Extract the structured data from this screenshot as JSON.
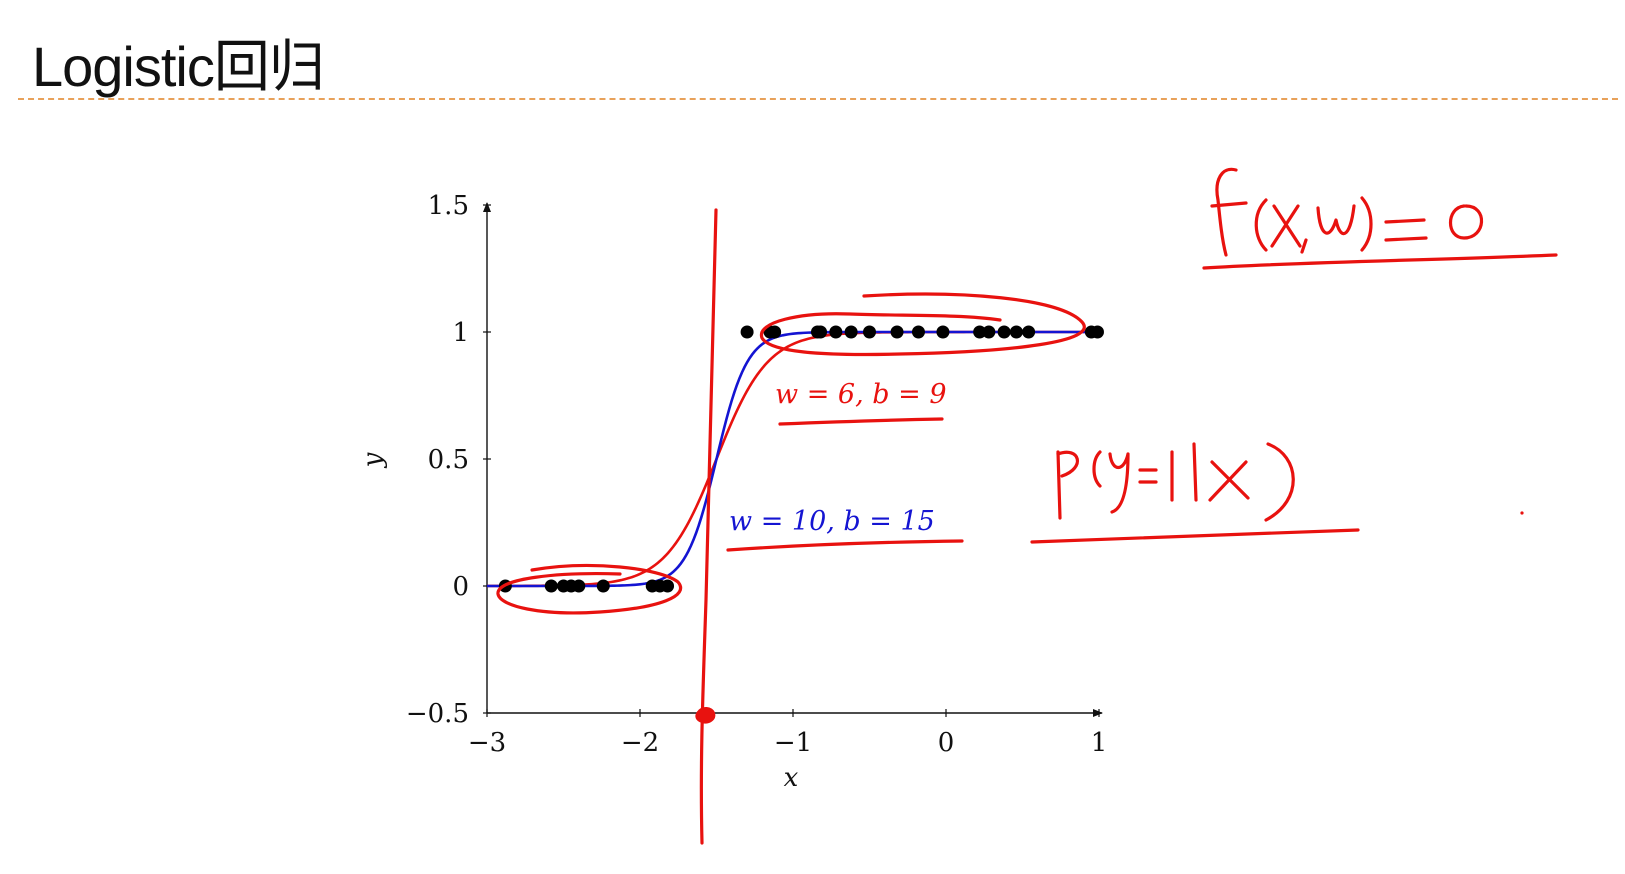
{
  "slide": {
    "title": "Logistic回归"
  },
  "chart_data": {
    "type": "line",
    "xlabel": "x",
    "ylabel": "y",
    "xlim": [
      -3,
      1
    ],
    "ylim": [
      -0.5,
      1.5
    ],
    "xticks": [
      -3,
      -2,
      -1,
      0,
      1
    ],
    "xtick_labels": [
      "−3",
      "−2",
      "−1",
      "0",
      "1"
    ],
    "yticks": [
      -0.5,
      0,
      0.5,
      1,
      1.5
    ],
    "ytick_labels": [
      "−0.5",
      "0",
      "0.5",
      "1",
      "1.5"
    ],
    "series": [
      {
        "name": "w = 6, b = 9",
        "kind": "sigmoid",
        "w": 6,
        "b": 9,
        "color": "#e8120f"
      },
      {
        "name": "w = 10, b = 15",
        "kind": "sigmoid",
        "w": 10,
        "b": 15,
        "color": "#1414d2"
      }
    ],
    "points": {
      "color": "#000000",
      "class0_x": [
        -2.88,
        -2.58,
        -2.5,
        -2.45,
        -2.4,
        -2.24,
        -1.92,
        -1.87,
        -1.82
      ],
      "class0_y": 0,
      "class1_x": [
        -1.3,
        -1.15,
        -1.12,
        -0.84,
        -0.82,
        -0.72,
        -0.62,
        -0.5,
        -0.32,
        -0.18,
        -0.02,
        0.22,
        0.28,
        0.38,
        0.46,
        0.54,
        0.95,
        0.99
      ],
      "class1_y": 1
    },
    "annotations": {
      "handwritten_1": "f(x,w) = 0",
      "handwritten_2": "p(y=1|x)"
    }
  }
}
